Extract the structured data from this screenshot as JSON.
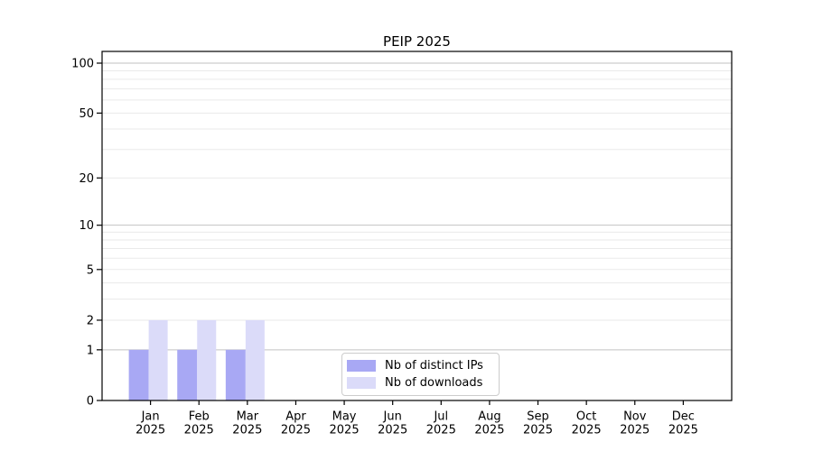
{
  "figure": {
    "background": "#ffffff",
    "axis_color": "#000000",
    "grid_major_color": "#c2c2c2",
    "grid_minor_color": "#eaeaea",
    "legend_border_color": "#cccccc"
  },
  "chart_data": {
    "type": "bar",
    "title": "PEIP 2025",
    "scale": "log10(1+y)",
    "xlabel": "",
    "ylabel": "",
    "categories": [
      "Jan",
      "Feb",
      "Mar",
      "Apr",
      "May",
      "Jun",
      "Jul",
      "Aug",
      "Sep",
      "Oct",
      "Nov",
      "Dec"
    ],
    "category_year": "2025",
    "series": [
      {
        "name": "Nb of distinct IPs",
        "color": "#a8a8f4",
        "values": [
          1,
          1,
          1,
          0,
          0,
          0,
          0,
          0,
          0,
          0,
          0,
          0
        ]
      },
      {
        "name": "Nb of downloads",
        "color": "#dbdbf9",
        "values": [
          2,
          2,
          2,
          0,
          0,
          0,
          0,
          0,
          0,
          0,
          0,
          0
        ]
      }
    ],
    "ytick_labels": [
      0,
      1,
      2,
      5,
      10,
      20,
      50,
      100
    ],
    "ylim": [
      0,
      118
    ],
    "grid": {
      "orientation": "horizontal",
      "major_values": [
        1,
        10,
        100
      ],
      "minor_values": [
        2,
        3,
        4,
        5,
        6,
        7,
        8,
        9,
        20,
        30,
        40,
        50,
        60,
        70,
        80,
        90
      ]
    },
    "legend_position": "lower center"
  }
}
